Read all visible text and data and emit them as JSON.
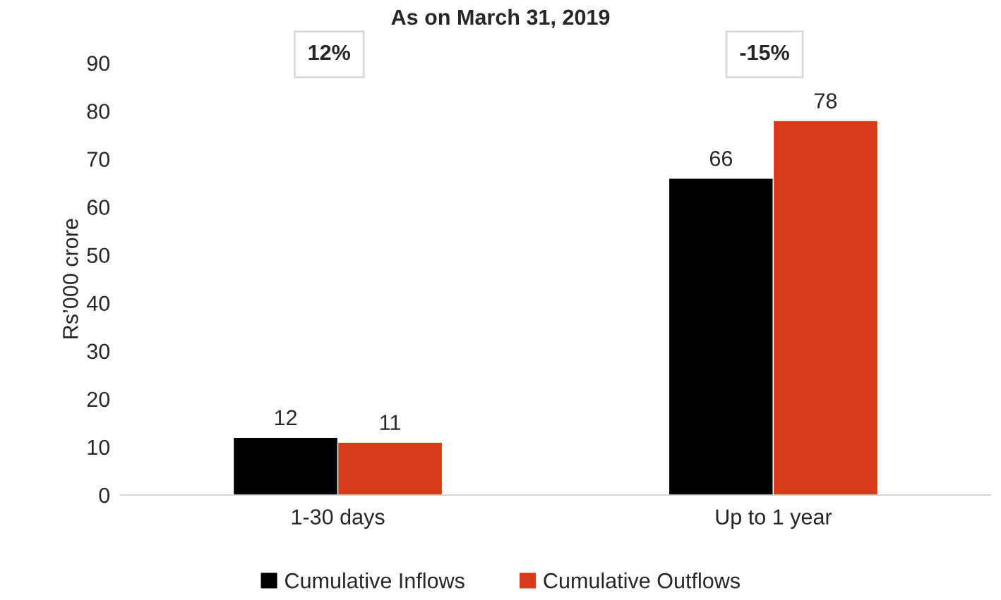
{
  "chart_data": {
    "type": "bar",
    "title": "As on March 31, 2019",
    "ylabel": "Rs’000 crore",
    "categories": [
      "1-30 days",
      "Up to 1 year"
    ],
    "series": [
      {
        "name": "Cumulative Inflows",
        "color": "#000000",
        "values": [
          12,
          66
        ]
      },
      {
        "name": "Cumulative Outflows",
        "color": "#d63a17",
        "values": [
          11,
          78
        ]
      }
    ],
    "annotations": [
      "12%",
      "-15%"
    ],
    "ylim": [
      0,
      90
    ],
    "yticks": [
      0,
      10,
      20,
      30,
      40,
      50,
      60,
      70,
      80,
      90
    ],
    "data_labels": true,
    "grid": false,
    "legend": "bottom"
  }
}
